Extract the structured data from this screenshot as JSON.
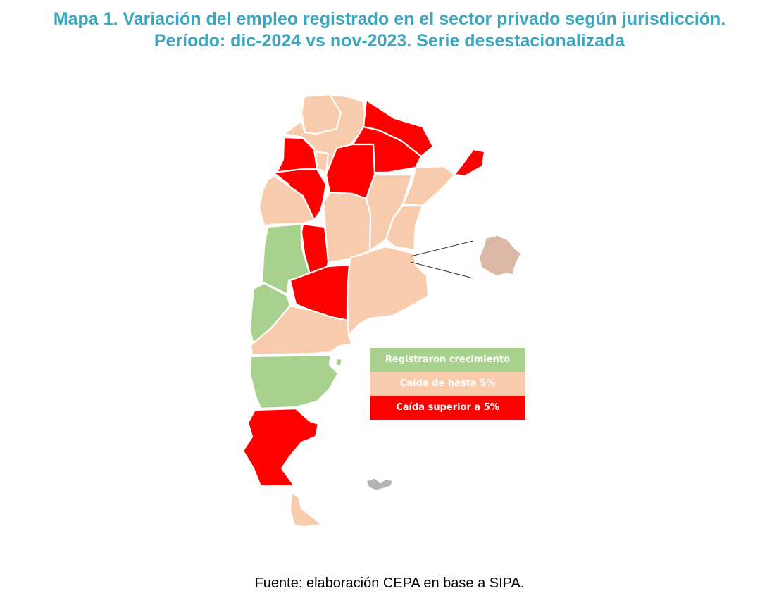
{
  "title": {
    "line1": "Mapa 1. Variación del empleo registrado en el sector privado según jurisdicción.",
    "line2": "Período: dic-2024 vs nov-2023. Serie desestacionalizada"
  },
  "legend": {
    "items": [
      {
        "label": "Registraron crecimiento",
        "color": "#a9d18e"
      },
      {
        "label": "Caída de hasta 5%",
        "color": "#f8cbad"
      },
      {
        "label": "Caída superior a 5%",
        "color": "#ff0000"
      }
    ]
  },
  "colors": {
    "growth": "#a9d18e",
    "decline_small": "#f8cbad",
    "decline_large": "#ff0000",
    "islands": "#b4b4b4",
    "title": "#3aa6bf"
  },
  "source": "Fuente: elaboración CEPA en base a SIPA."
}
